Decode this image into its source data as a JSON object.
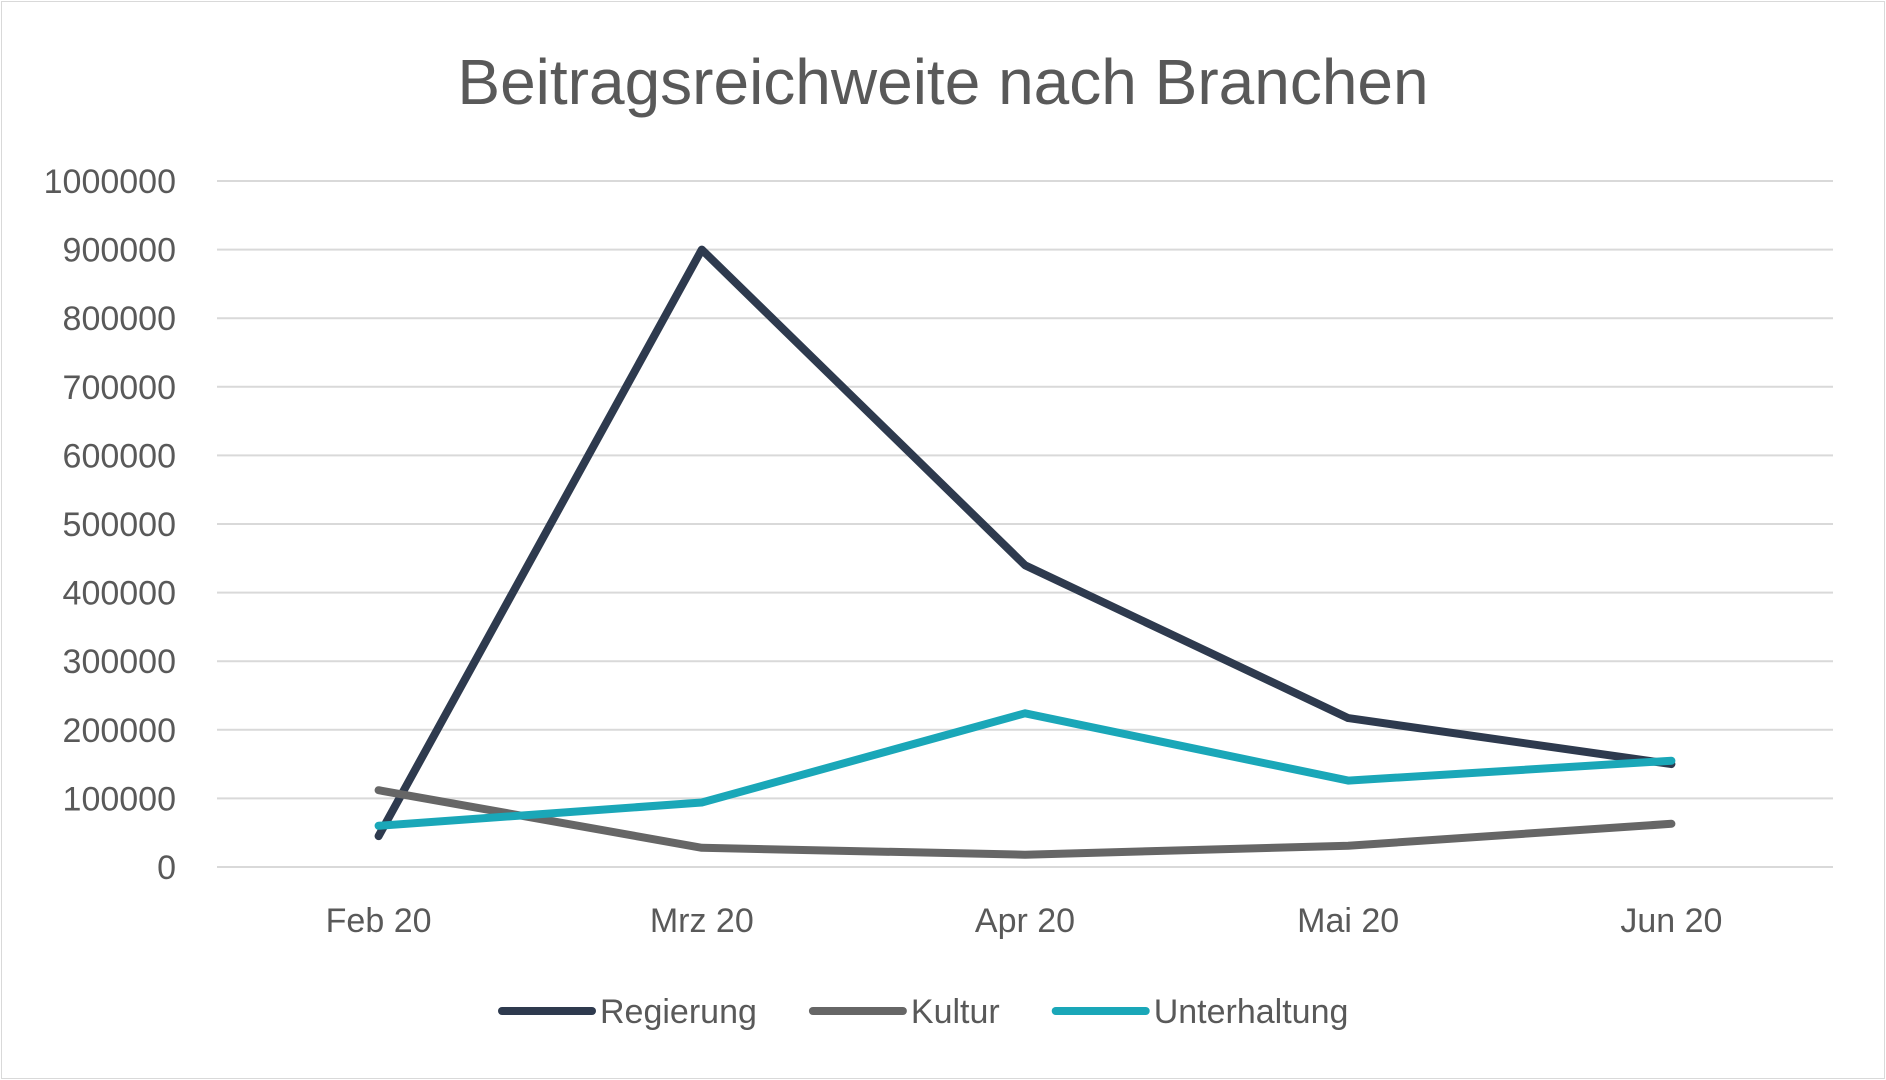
{
  "chart_data": {
    "type": "line",
    "title": "Beitragsreichweite nach Branchen",
    "xlabel": "",
    "ylabel": "",
    "categories": [
      "Feb 20",
      "Mrz 20",
      "Apr 20",
      "Mai 20",
      "Jun 20"
    ],
    "ylim": [
      0,
      1000000
    ],
    "yticks": [
      "0",
      "100000",
      "200000",
      "300000",
      "400000",
      "500000",
      "600000",
      "700000",
      "800000",
      "900000",
      "1000000"
    ],
    "grid": true,
    "legend_position": "bottom",
    "series": [
      {
        "name": "Regierung",
        "color": "#2e3a4e",
        "values": [
          45000,
          900000,
          440000,
          217000,
          150000
        ]
      },
      {
        "name": "Kultur",
        "color": "#666666",
        "values": [
          112000,
          28000,
          18000,
          31000,
          63000
        ]
      },
      {
        "name": "Unterhaltung",
        "color": "#1aa7b8",
        "values": [
          60000,
          94000,
          224000,
          126000,
          155000
        ]
      }
    ]
  }
}
